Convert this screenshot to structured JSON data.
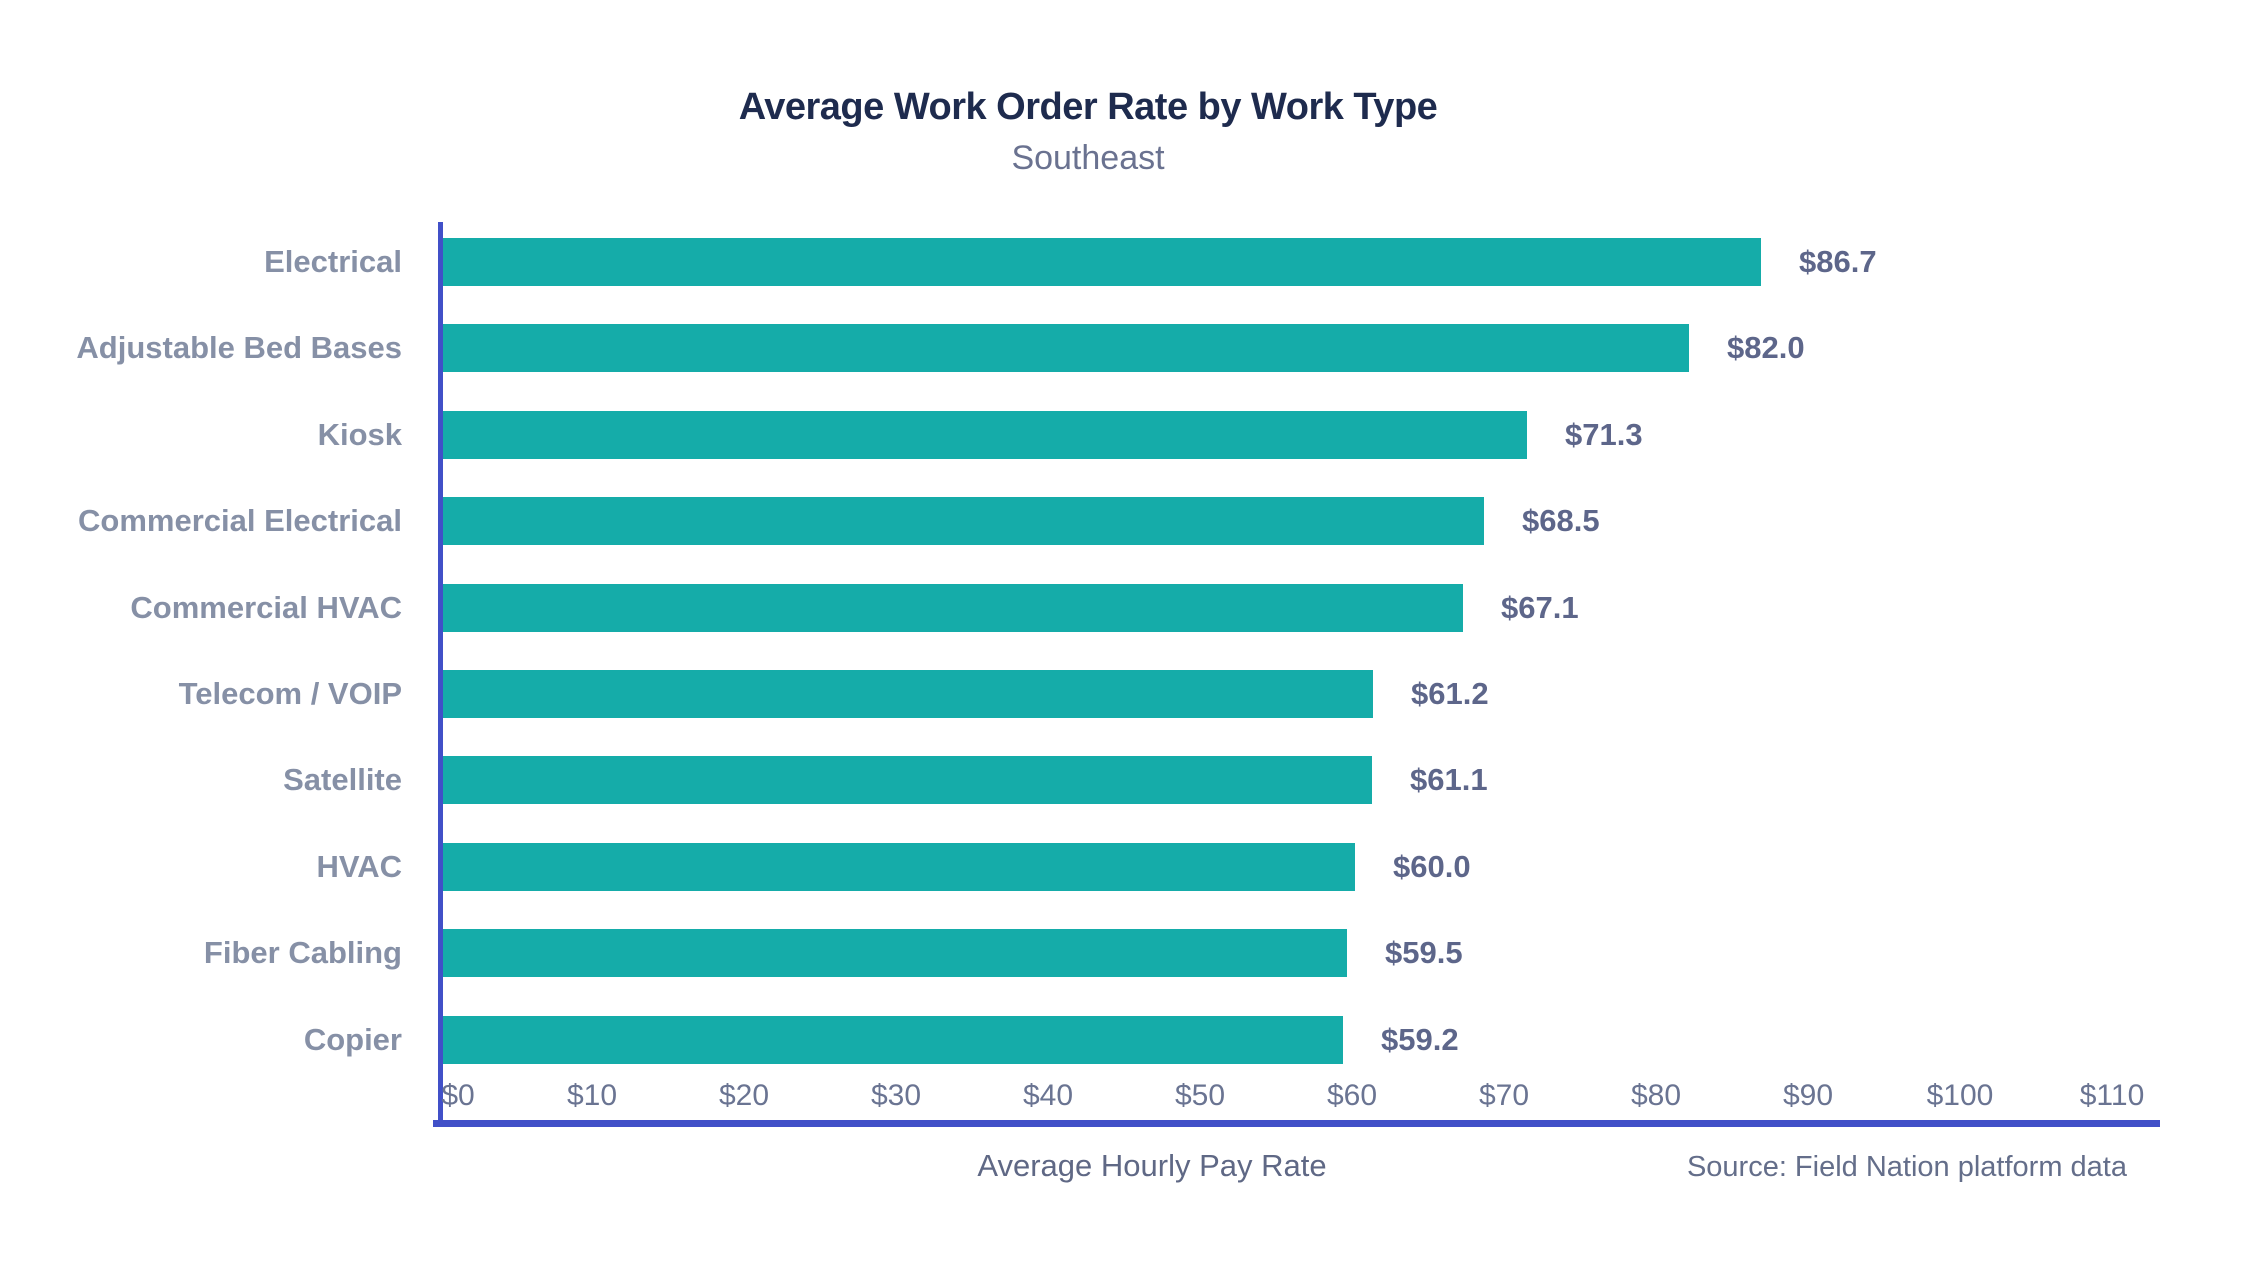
{
  "chart_data": {
    "type": "bar",
    "orientation": "horizontal",
    "title": "Average Work Order Rate by Work Type",
    "subtitle": "Southeast",
    "xlabel": "Average Hourly Pay Rate",
    "source": "Source: Field Nation platform data",
    "categories": [
      "Electrical",
      "Adjustable Bed Bases",
      "Kiosk",
      "Commercial Electrical",
      "Commercial HVAC",
      "Telecom / VOIP",
      "Satellite",
      "HVAC",
      "Fiber Cabling",
      "Copier"
    ],
    "values": [
      86.7,
      82.0,
      71.3,
      68.5,
      67.1,
      61.2,
      61.1,
      60.0,
      59.5,
      59.2
    ],
    "value_labels": [
      "$86.7",
      "$82.0",
      "$71.3",
      "$68.5",
      "$67.1",
      "$61.2",
      "$61.1",
      "$60.0",
      "$59.5",
      "$59.2"
    ],
    "xlim": [
      0,
      110
    ],
    "xticks": [
      0,
      10,
      20,
      30,
      40,
      50,
      60,
      70,
      80,
      90,
      100,
      110
    ],
    "xtick_labels": [
      "$0",
      "$10",
      "$20",
      "$30",
      "$40",
      "$50",
      "$60",
      "$70",
      "$80",
      "$90",
      "$100",
      "$110"
    ],
    "grid": false,
    "legend": null,
    "colors": {
      "bar": "#15aca9",
      "axis": "#4150c8",
      "title": "#1e2b4e",
      "subtitle": "#6a7290",
      "category_label": "#8690a6",
      "value_label": "#5d668a",
      "tick_label": "#6a7492",
      "xlabel": "#5f6885",
      "source": "#646e8a",
      "background": "#ffffff"
    }
  }
}
